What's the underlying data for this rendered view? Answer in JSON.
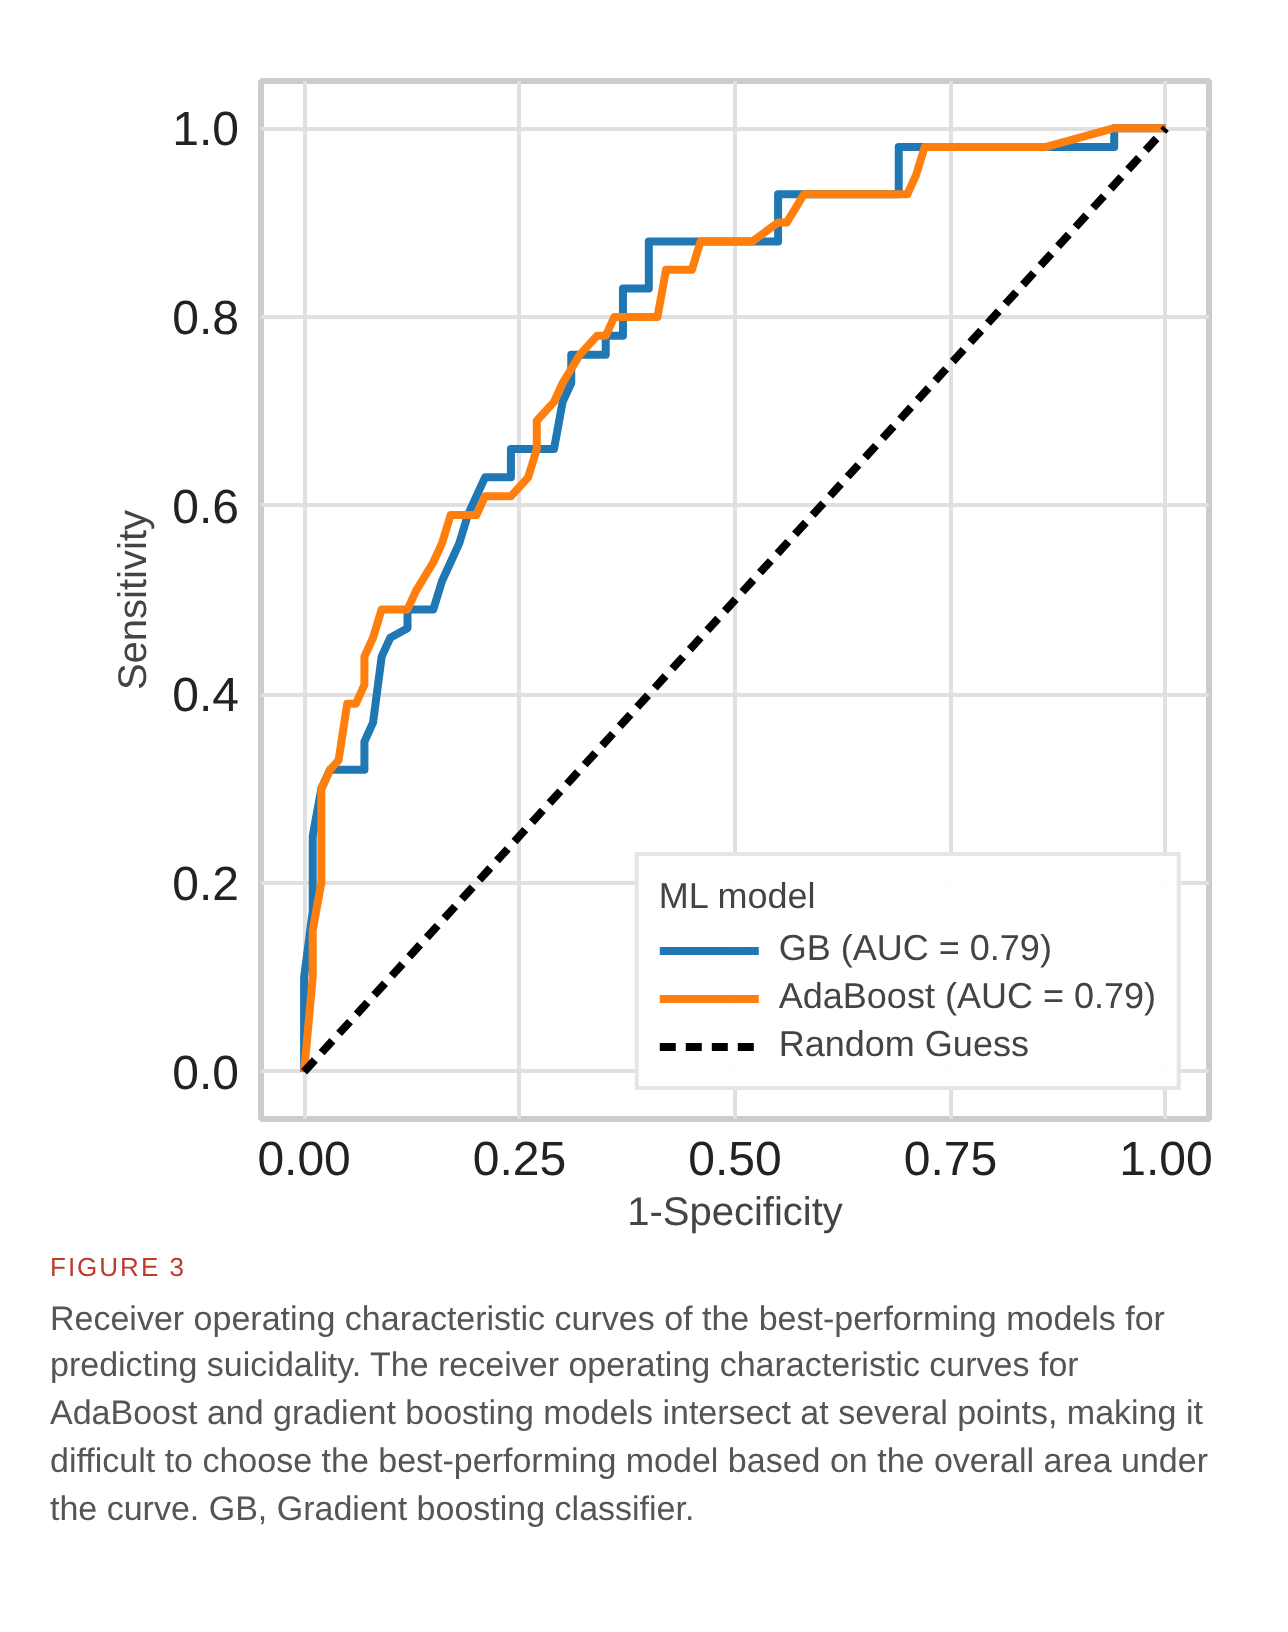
{
  "chart_data": {
    "type": "line",
    "xlabel": "1-Specificity",
    "ylabel": "Sensitivity",
    "legend_title": "ML model",
    "xlim": [
      -0.05,
      1.05
    ],
    "ylim": [
      -0.05,
      1.05
    ],
    "xticks": [
      {
        "value": 0,
        "label": "0.00"
      },
      0.25,
      {
        "value": 0.5,
        "label": "0.50"
      },
      0.75,
      {
        "value": 1,
        "label": "1.00"
      }
    ],
    "yticks": [
      {
        "value": 0,
        "label": "0.0"
      },
      0.2,
      0.4,
      0.6,
      0.8,
      {
        "value": 1,
        "label": "1.0"
      }
    ],
    "grid": true,
    "legend": "bottom right",
    "series": [
      {
        "name": "GB (AUC = 0.79)",
        "color": "#1f77b4",
        "line_style": "solid",
        "x": [
          0,
          0,
          0.01,
          0.01,
          0.02,
          0.03,
          0.07,
          0.07,
          0.08,
          0.09,
          0.1,
          0.12,
          0.12,
          0.15,
          0.16,
          0.17,
          0.18,
          0.19,
          0.2,
          0.21,
          0.24,
          0.24,
          0.29,
          0.3,
          0.31,
          0.31,
          0.35,
          0.35,
          0.37,
          0.37,
          0.4,
          0.4,
          0.55,
          0.55,
          0.69,
          0.69,
          0.94,
          0.94,
          1.0
        ],
        "values": [
          0,
          0.1,
          0.17,
          0.25,
          0.3,
          0.32,
          0.32,
          0.35,
          0.37,
          0.44,
          0.46,
          0.47,
          0.49,
          0.49,
          0.52,
          0.54,
          0.56,
          0.59,
          0.61,
          0.63,
          0.63,
          0.66,
          0.66,
          0.71,
          0.73,
          0.76,
          0.76,
          0.78,
          0.78,
          0.83,
          0.83,
          0.88,
          0.88,
          0.93,
          0.93,
          0.98,
          0.98,
          1.0,
          1.0
        ]
      },
      {
        "name": "AdaBoost (AUC = 0.79)",
        "color": "#ff7f0e",
        "line_style": "solid",
        "x": [
          0,
          0.01,
          0.01,
          0.02,
          0.02,
          0.03,
          0.04,
          0.05,
          0.06,
          0.07,
          0.07,
          0.08,
          0.09,
          0.12,
          0.13,
          0.15,
          0.16,
          0.17,
          0.2,
          0.21,
          0.24,
          0.26,
          0.27,
          0.27,
          0.29,
          0.3,
          0.32,
          0.34,
          0.35,
          0.36,
          0.41,
          0.42,
          0.45,
          0.46,
          0.52,
          0.55,
          0.56,
          0.58,
          0.7,
          0.71,
          0.72,
          0.86,
          0.94,
          1.0
        ],
        "values": [
          0,
          0.1,
          0.15,
          0.2,
          0.3,
          0.32,
          0.33,
          0.39,
          0.39,
          0.41,
          0.44,
          0.46,
          0.49,
          0.49,
          0.51,
          0.54,
          0.56,
          0.59,
          0.59,
          0.61,
          0.61,
          0.63,
          0.66,
          0.69,
          0.71,
          0.73,
          0.76,
          0.78,
          0.78,
          0.8,
          0.8,
          0.85,
          0.85,
          0.88,
          0.88,
          0.9,
          0.9,
          0.93,
          0.93,
          0.95,
          0.98,
          0.98,
          1.0,
          1.0
        ]
      },
      {
        "name": "Random Guess",
        "color": "#000000",
        "line_style": "dashed",
        "x": [
          0,
          1
        ],
        "values": [
          0,
          1
        ]
      }
    ],
    "annotations": [
      "FIGURE 3",
      "Receiver operating characteristic curves of the best-performing models for predicting suicidality. The receiver operating characteristic curves for AdaBoost and gradient boosting models intersect at several points, making it difficult to choose the best-performing model based on the overall area under the curve. GB, Gradient boosting classifier."
    ]
  }
}
